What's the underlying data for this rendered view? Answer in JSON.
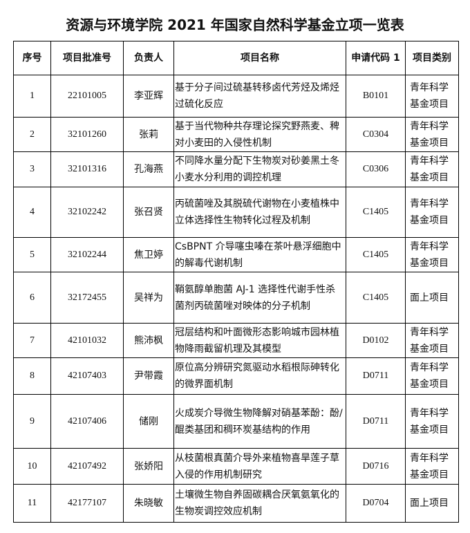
{
  "title": "资源与环境学院 2021 年国家自然科学基金立项一览表",
  "headers": [
    "序号",
    "项目批准号",
    "负责人",
    "项目名称",
    "申请代码 1",
    "项目类别"
  ],
  "rows": [
    {
      "no": "1",
      "id": "22101005",
      "person": "李亚辉",
      "name": "基于分子间过硫基转移卤代芳烃及烯烃过硫化反应",
      "code": "B0101",
      "category": "青年科学基金项目"
    },
    {
      "no": "2",
      "id": "32101260",
      "person": "张莉",
      "name": "基于当代物种共存理论探究野燕麦、稗对小麦田的入侵性机制",
      "code": "C0304",
      "category": "青年科学基金项目"
    },
    {
      "no": "3",
      "id": "32101316",
      "person": "孔海燕",
      "name": "不同降水量分配下生物炭对砂姜黑土冬小麦水分利用的调控机理",
      "code": "C0306",
      "category": "青年科学基金项目"
    },
    {
      "no": "4",
      "id": "32102242",
      "person": "张召贤",
      "name": "丙硫菌唑及其脱硫代谢物在小麦植株中立体选择性生物转化过程及机制",
      "code": "C1405",
      "category": "青年科学基金项目"
    },
    {
      "no": "5",
      "id": "32102244",
      "person": "焦卫婷",
      "name": "CsBPNT 介导噻虫嗪在茶叶悬浮细胞中的解毒代谢机制",
      "code": "C1405",
      "category": "青年科学基金项目"
    },
    {
      "no": "6",
      "id": "32172455",
      "person": "吴祥为",
      "name": "鞘氨醇单胞菌 AJ-1 选择性代谢手性杀菌剂丙硫菌唑对映体的分子机制",
      "code": "C1405",
      "category": "面上项目"
    },
    {
      "no": "7",
      "id": "42101032",
      "person": "熊沛枫",
      "name": "冠层结构和叶面微形态影响城市园林植物降雨截留机理及其模型",
      "code": "D0102",
      "category": "青年科学基金项目"
    },
    {
      "no": "8",
      "id": "42107403",
      "person": "尹带霞",
      "name": "原位高分辨研究氮驱动水稻根际砷转化的微界面机制",
      "code": "D0711",
      "category": "青年科学基金项目"
    },
    {
      "no": "9",
      "id": "42107406",
      "person": "储刚",
      "name": "火成炭介导微生物降解对硝基苯酚：酚/醌类基团和稠环炭基结构的作用",
      "code": "D0711",
      "category": "青年科学基金项目"
    },
    {
      "no": "10",
      "id": "42107492",
      "person": "张娇阳",
      "name": "从枝菌根真菌介导外来植物喜旱莲子草入侵的作用机制研究",
      "code": "D0716",
      "category": "青年科学基金项目"
    },
    {
      "no": "11",
      "id": "42177107",
      "person": "朱晓敏",
      "name": "土壤微生物自养固碳耦合厌氧氨氧化的生物炭调控效应机制",
      "code": "D0704",
      "category": "面上项目"
    }
  ]
}
